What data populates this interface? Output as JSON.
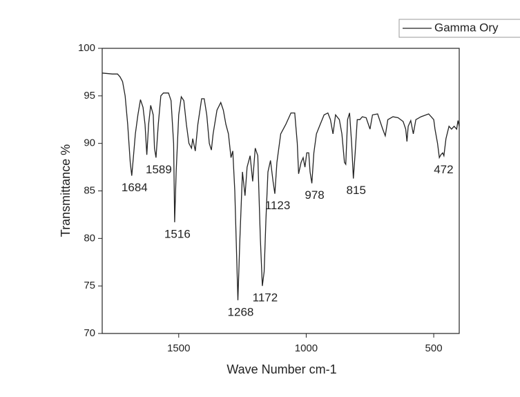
{
  "chart_data": {
    "type": "line",
    "xlabel": "Wave Number cm-1",
    "ylabel": "Transmittance %",
    "xlim": [
      1800,
      400
    ],
    "ylim": [
      70,
      100
    ],
    "xticks": [
      1500,
      1000,
      500
    ],
    "yticks": [
      70,
      75,
      80,
      85,
      90,
      95,
      100
    ],
    "legend": "top-right",
    "series": [
      {
        "name": "Gamma Ory",
        "color": "#222222",
        "x": [
          1800,
          1760,
          1740,
          1730,
          1720,
          1710,
          1700,
          1690,
          1684,
          1678,
          1670,
          1660,
          1650,
          1640,
          1632,
          1625,
          1618,
          1610,
          1600,
          1595,
          1589,
          1580,
          1570,
          1560,
          1540,
          1530,
          1520,
          1516,
          1510,
          1500,
          1490,
          1480,
          1470,
          1460,
          1450,
          1445,
          1435,
          1425,
          1410,
          1400,
          1390,
          1380,
          1372,
          1365,
          1350,
          1335,
          1325,
          1315,
          1305,
          1295,
          1288,
          1280,
          1268,
          1260,
          1250,
          1240,
          1232,
          1220,
          1210,
          1200,
          1190,
          1180,
          1172,
          1165,
          1158,
          1150,
          1140,
          1130,
          1123,
          1115,
          1100,
          1080,
          1060,
          1045,
          1035,
          1030,
          1020,
          1012,
          1005,
          998,
          990,
          985,
          978,
          970,
          960,
          945,
          930,
          915,
          905,
          895,
          885,
          870,
          860,
          850,
          845,
          838,
          830,
          822,
          815,
          808,
          800,
          790,
          780,
          765,
          750,
          740,
          720,
          700,
          690,
          680,
          660,
          640,
          620,
          610,
          605,
          600,
          590,
          580,
          570,
          550,
          520,
          510,
          500,
          495,
          485,
          478,
          472,
          465,
          460,
          452,
          440,
          430,
          420,
          410,
          405,
          400
        ],
        "values": [
          97.4,
          97.3,
          97.3,
          97.0,
          96.5,
          95,
          92,
          88,
          86.6,
          88.5,
          91,
          93,
          94.6,
          93.8,
          92,
          88.8,
          92,
          94,
          93,
          89.5,
          88.5,
          92,
          95,
          95.3,
          95.3,
          94.5,
          90,
          81.7,
          87,
          93,
          94.9,
          94.5,
          92,
          90,
          89.5,
          90.5,
          89.2,
          92,
          94.7,
          94.7,
          93,
          90,
          89.3,
          91,
          93.5,
          94.3,
          93.5,
          92,
          91,
          88.5,
          89.2,
          85,
          73.5,
          80,
          87,
          84.5,
          87.5,
          88.7,
          86,
          89.5,
          88.7,
          80,
          75,
          76.5,
          82,
          87,
          88.2,
          86,
          84.7,
          88,
          91,
          92,
          93.2,
          93.2,
          90,
          86.8,
          88,
          88.5,
          87.5,
          89,
          89,
          87,
          85.8,
          89,
          91,
          92,
          93,
          93.2,
          92.5,
          91,
          93,
          92.5,
          91,
          88,
          87.8,
          92.5,
          93.2,
          90,
          86.3,
          89,
          92.5,
          92.5,
          92.8,
          92.7,
          91.5,
          93,
          93.1,
          91.5,
          90.8,
          92.5,
          92.8,
          92.7,
          92.3,
          91.5,
          90.2,
          91.8,
          92.4,
          91,
          92.5,
          92.8,
          93.1,
          92.8,
          92.5,
          91.5,
          90,
          88.5,
          88.8,
          89,
          88.7,
          90.5,
          91.8,
          91.5,
          91.8,
          91.5,
          92.4,
          91.8
        ]
      }
    ],
    "annotations": [
      {
        "text": "1684",
        "x": 1684,
        "y": 86.6
      },
      {
        "text": "1589",
        "x": 1589,
        "y": 88.5
      },
      {
        "text": "1516",
        "x": 1516,
        "y": 81.7
      },
      {
        "text": "1268",
        "x": 1268,
        "y": 73.5
      },
      {
        "text": "1172",
        "x": 1172,
        "y": 75
      },
      {
        "text": "1123",
        "x": 1123,
        "y": 84.7
      },
      {
        "text": "978",
        "x": 978,
        "y": 85.8
      },
      {
        "text": "815",
        "x": 815,
        "y": 86.3
      },
      {
        "text": "472",
        "x": 472,
        "y": 88.5
      }
    ]
  }
}
